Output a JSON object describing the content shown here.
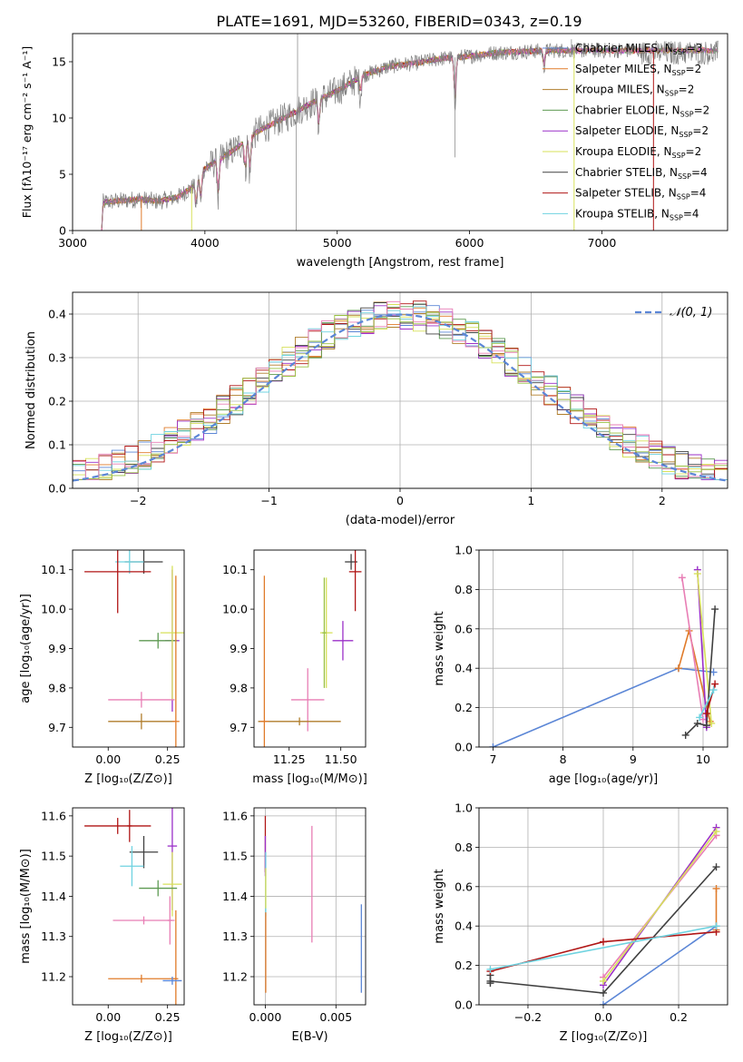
{
  "figure_title": "PLATE=1691, MJD=53260, FIBERID=0343, z=0.19",
  "colors": {
    "blue": "#5b86d6",
    "orange": "#e07b2a",
    "brown": "#b07d2b",
    "green": "#5e9a52",
    "purple": "#9b30c8",
    "yellow": "#d7e15a",
    "dark": "#404040",
    "red": "#b01515",
    "cyan": "#6fd3e0",
    "pink": "#e87eb5",
    "lime": "#98c040",
    "grey": "#808080"
  },
  "chart_data": [
    {
      "id": "spectrum",
      "type": "line",
      "title": "PLATE=1691, MJD=53260, FIBERID=0343, z=0.19",
      "xlabel": "wavelength [Angstrom, rest frame]",
      "ylabel": "Flux [fλ10⁻¹⁷ erg cm⁻² s⁻¹ A⁻¹]",
      "xlim": [
        3000,
        7950
      ],
      "ylim": [
        0,
        17.5
      ],
      "xticks": [
        "3000",
        "4000",
        "5000",
        "6000",
        "7000"
      ],
      "yticks": [
        "0",
        "5",
        "10",
        "15"
      ],
      "grid": false,
      "legend_position": "right",
      "legend": [
        {
          "label": "Chabrier MILES, N",
          "sub": "SSP",
          "suffix": "=3",
          "color": "#5b86d6"
        },
        {
          "label": "Salpeter MILES, N",
          "sub": "SSP",
          "suffix": "=2",
          "color": "#e07b2a"
        },
        {
          "label": "Kroupa MILES, N",
          "sub": "SSP",
          "suffix": "=2",
          "color": "#b07d2b"
        },
        {
          "label": "Chabrier ELODIE, N",
          "sub": "SSP",
          "suffix": "=2",
          "color": "#5e9a52"
        },
        {
          "label": "Salpeter ELODIE, N",
          "sub": "SSP",
          "suffix": "=2",
          "color": "#9b30c8"
        },
        {
          "label": "Kroupa ELODIE, N",
          "sub": "SSP",
          "suffix": "=2",
          "color": "#d7e15a"
        },
        {
          "label": "Chabrier STELIB, N",
          "sub": "SSP",
          "suffix": "=4",
          "color": "#404040"
        },
        {
          "label": "Salpeter STELIB, N",
          "sub": "SSP",
          "suffix": "=4",
          "color": "#b01515"
        },
        {
          "label": "Kroupa STELIB, N",
          "sub": "SSP",
          "suffix": "=4",
          "color": "#6fd3e0"
        }
      ],
      "continuum": [
        [
          3220,
          0
        ],
        [
          3230,
          2.5
        ],
        [
          3500,
          2.8
        ],
        [
          3650,
          2.6
        ],
        [
          3800,
          3.0
        ],
        [
          3900,
          3.8
        ],
        [
          4000,
          5.5
        ],
        [
          4200,
          7.0
        ],
        [
          4400,
          8.8
        ],
        [
          4600,
          10.0
        ],
        [
          4800,
          11.3
        ],
        [
          5000,
          12.4
        ],
        [
          5200,
          13.8
        ],
        [
          5400,
          14.6
        ],
        [
          5600,
          14.9
        ],
        [
          5800,
          15.3
        ],
        [
          6000,
          15.5
        ],
        [
          6200,
          15.8
        ],
        [
          6400,
          15.9
        ],
        [
          6600,
          16.0
        ],
        [
          6800,
          16.0
        ]
      ],
      "absorption_lines": [
        [
          3934,
          2.5
        ],
        [
          3969,
          2.5
        ],
        [
          4101,
          3.5
        ],
        [
          4305,
          3.0
        ],
        [
          4340,
          3.5
        ],
        [
          4861,
          2.5
        ],
        [
          5175,
          1.5
        ],
        [
          5890,
          4.5
        ],
        [
          6563,
          1.5
        ]
      ]
    },
    {
      "id": "residuals",
      "type": "line",
      "xlabel": "(data-model)/error",
      "ylabel": "Normed distribution",
      "xlim": [
        -2.5,
        2.5
      ],
      "ylim": [
        0,
        0.45
      ],
      "xticks": [
        "−2",
        "−1",
        "0",
        "1",
        "2"
      ],
      "yticks": [
        "0.0",
        "0.1",
        "0.2",
        "0.3",
        "0.4"
      ],
      "grid": true,
      "legend_position": "top-right",
      "legend_label": "𝒩(0, 1)",
      "gaussian": {
        "mean": 0,
        "sigma": 1
      },
      "bin_width": 0.1
    },
    {
      "id": "age_vs_Z",
      "type": "scatter",
      "xlabel": "Z [log₁₀(Z/Z⊙)]",
      "ylabel": "age  [log₁₀(age/yr)]",
      "xlim": [
        -0.15,
        0.32
      ],
      "ylim": [
        9.65,
        10.15
      ],
      "xticks": [
        "0.00",
        "0.25"
      ],
      "yticks": [
        "9.7",
        "9.8",
        "9.9",
        "10.0",
        "10.1"
      ],
      "points": [
        {
          "x": 0.15,
          "y": 10.12,
          "xerr": 0.08,
          "yerr": 0.03,
          "color": "#404040"
        },
        {
          "x": 0.09,
          "y": 10.12,
          "xerr": 0.06,
          "yerr": 0.03,
          "color": "#6fd3e0"
        },
        {
          "x": 0.04,
          "y": 10.095,
          "xerr": 0.14,
          "yerr": 0.105,
          "color": "#b01515"
        },
        {
          "x": 0.27,
          "y": 9.92,
          "xerr": 0.03,
          "yerr": 0.18,
          "color": "#9b30c8"
        },
        {
          "x": 0.21,
          "y": 9.92,
          "xerr": 0.08,
          "yerr": 0.02,
          "color": "#5e9a52"
        },
        {
          "x": 0.27,
          "y": 9.94,
          "xerr": 0.05,
          "yerr": 0.17,
          "color": "#d7e15a"
        },
        {
          "x": 0.14,
          "y": 9.77,
          "xerr": 0.14,
          "yerr": 0.02,
          "color": "#e87eb5"
        },
        {
          "x": 0.14,
          "y": 9.715,
          "xerr": 0.14,
          "yerr": 0.02,
          "color": "#b07d2b"
        },
        {
          "x": 0.285,
          "y": 9.715,
          "xerr": 0.015,
          "yerr": 0.37,
          "color": "#e07b2a"
        }
      ]
    },
    {
      "id": "age_vs_mass",
      "type": "scatter",
      "xlabel": "mass [log₁₀(M/M⊙)]",
      "ylabel": "",
      "xlim": [
        11.08,
        11.62
      ],
      "ylim": [
        9.65,
        10.15
      ],
      "xticks": [
        "11.25",
        "11.50"
      ],
      "yticks": [
        "9.7",
        "9.8",
        "9.9",
        "10.0",
        "10.1"
      ],
      "points": [
        {
          "x": 11.55,
          "y": 10.12,
          "xerr": 0.03,
          "yerr": 0.02,
          "color": "#404040"
        },
        {
          "x": 11.57,
          "y": 10.095,
          "xerr": 0.03,
          "yerr": 0.1,
          "color": "#b01515"
        },
        {
          "x": 11.51,
          "y": 9.92,
          "xerr": 0.05,
          "yerr": 0.05,
          "color": "#9b30c8"
        },
        {
          "x": 11.43,
          "y": 9.94,
          "xerr": 0.03,
          "yerr": 0.14,
          "color": "#d7e15a"
        },
        {
          "x": 11.42,
          "y": 9.94,
          "xerr": 0.01,
          "yerr": 0.14,
          "color": "#98c040"
        },
        {
          "x": 11.34,
          "y": 9.77,
          "xerr": 0.08,
          "yerr": 0.08,
          "color": "#e87eb5"
        },
        {
          "x": 11.3,
          "y": 9.715,
          "xerr": 0.2,
          "yerr": 0.01,
          "color": "#b07d2b"
        },
        {
          "x": 11.13,
          "y": 9.715,
          "xerr": 0.02,
          "yerr": 0.37,
          "color": "#e07b2a"
        }
      ]
    },
    {
      "id": "weight_vs_age",
      "type": "line",
      "xlabel": "age  [log₁₀(age/yr)]",
      "ylabel": "mass weight",
      "xlim": [
        6.8,
        10.35
      ],
      "ylim": [
        0,
        1
      ],
      "xticks": [
        "7",
        "8",
        "9",
        "10"
      ],
      "yticks": [
        "0.0",
        "0.2",
        "0.4",
        "0.6",
        "0.8",
        "1.0"
      ],
      "grid": true,
      "series": [
        {
          "color": "#5b86d6",
          "x": [
            7.0,
            9.65,
            10.15
          ],
          "y": [
            0.0,
            0.4,
            0.38
          ]
        },
        {
          "color": "#e07b2a",
          "x": [
            9.65,
            9.8,
            10.1
          ],
          "y": [
            0.4,
            0.59,
            0.13
          ]
        },
        {
          "color": "#e87eb5",
          "x": [
            9.7,
            10.0
          ],
          "y": [
            0.86,
            0.14
          ]
        },
        {
          "color": "#9b30c8",
          "x": [
            9.92,
            10.05
          ],
          "y": [
            0.9,
            0.1
          ]
        },
        {
          "color": "#d7e15a",
          "x": [
            9.92,
            10.12
          ],
          "y": [
            0.88,
            0.12
          ]
        },
        {
          "color": "#404040",
          "x": [
            9.75,
            9.92,
            10.05,
            10.17
          ],
          "y": [
            0.06,
            0.12,
            0.11,
            0.7
          ]
        },
        {
          "color": "#b01515",
          "x": [
            10.05,
            10.17
          ],
          "y": [
            0.17,
            0.32
          ]
        },
        {
          "color": "#6fd3e0",
          "x": [
            9.95,
            10.15
          ],
          "y": [
            0.15,
            0.29
          ]
        }
      ]
    },
    {
      "id": "mass_vs_Z",
      "type": "scatter",
      "xlabel": "Z [log₁₀(Z/Z⊙)]",
      "ylabel": "mass [log₁₀(M/M⊙)]",
      "xlim": [
        -0.15,
        0.32
      ],
      "ylim": [
        11.13,
        11.62
      ],
      "xticks": [
        "0.00",
        "0.25"
      ],
      "yticks": [
        "11.2",
        "11.3",
        "11.4",
        "11.5",
        "11.6"
      ],
      "points": [
        {
          "x": 0.04,
          "y": 11.575,
          "xerr": 0.14,
          "yerr": 0.02,
          "color": "#b01515"
        },
        {
          "x": 0.09,
          "y": 11.575,
          "xerr": 0.01,
          "yerr": 0.04,
          "color": "#b01515"
        },
        {
          "x": 0.15,
          "y": 11.51,
          "xerr": 0.06,
          "yerr": 0.04,
          "color": "#404040"
        },
        {
          "x": 0.27,
          "y": 11.525,
          "xerr": 0.02,
          "yerr": 0.16,
          "color": "#9b30c8"
        },
        {
          "x": 0.1,
          "y": 11.475,
          "xerr": 0.05,
          "yerr": 0.05,
          "color": "#6fd3e0"
        },
        {
          "x": 0.27,
          "y": 11.43,
          "xerr": 0.04,
          "yerr": 0.08,
          "color": "#d7e15a"
        },
        {
          "x": 0.21,
          "y": 11.42,
          "xerr": 0.08,
          "yerr": 0.02,
          "color": "#5e9a52"
        },
        {
          "x": 0.15,
          "y": 11.34,
          "xerr": 0.13,
          "yerr": 0.01,
          "color": "#e87eb5"
        },
        {
          "x": 0.26,
          "y": 11.34,
          "xerr": 0.01,
          "yerr": 0.06,
          "color": "#e87eb5"
        },
        {
          "x": 0.14,
          "y": 11.195,
          "xerr": 0.14,
          "yerr": 0.01,
          "color": "#e07b2a"
        },
        {
          "x": 0.285,
          "y": 11.195,
          "xerr": 0.01,
          "yerr": 0.17,
          "color": "#e07b2a"
        },
        {
          "x": 0.27,
          "y": 11.19,
          "xerr": 0.04,
          "yerr": 0.01,
          "color": "#5b86d6"
        }
      ]
    },
    {
      "id": "mass_vs_ebv",
      "type": "scatter",
      "xlabel": "E(B-V)",
      "ylabel": "",
      "xlim": [
        -0.0008,
        0.0071
      ],
      "ylim": [
        11.13,
        11.62
      ],
      "xticks": [
        "0.000",
        "0.005"
      ],
      "yticks": [
        "11.2",
        "11.3",
        "11.4",
        "11.5",
        "11.6"
      ],
      "grid": true,
      "points": [
        {
          "x": 0.0,
          "y": 11.53,
          "xerr": 0,
          "yerr": 0.07,
          "color": "#b01515"
        },
        {
          "x": 0.0,
          "y": 11.5,
          "xerr": 0,
          "yerr": 0.05,
          "color": "#9b30c8"
        },
        {
          "x": 3e-05,
          "y": 11.43,
          "xerr": 0,
          "yerr": 0.08,
          "color": "#6fd3e0"
        },
        {
          "x": 3e-05,
          "y": 11.42,
          "xerr": 0,
          "yerr": 0.05,
          "color": "#d7e15a"
        },
        {
          "x": 3e-05,
          "y": 11.26,
          "xerr": 0,
          "yerr": 0.1,
          "color": "#e07b2a"
        },
        {
          "x": 0.0033,
          "y": 11.43,
          "xerr": 0,
          "yerr": 0.145,
          "color": "#e87eb5"
        },
        {
          "x": 0.0068,
          "y": 11.27,
          "xerr": 0,
          "yerr": 0.11,
          "color": "#5b86d6"
        }
      ]
    },
    {
      "id": "weight_vs_Z",
      "type": "line",
      "xlabel": "Z [log₁₀(Z/Z⊙)]",
      "ylabel": "mass weight",
      "xlim": [
        -0.33,
        0.33
      ],
      "ylim": [
        0,
        1
      ],
      "xticks": [
        "−0.2",
        "0.0",
        "0.2"
      ],
      "yticks": [
        "0.0",
        "0.2",
        "0.4",
        "0.6",
        "0.8",
        "1.0"
      ],
      "grid": true,
      "series": [
        {
          "color": "#5b86d6",
          "x": [
            0.0,
            0.3
          ],
          "y": [
            0.0,
            0.4
          ]
        },
        {
          "color": "#e07b2a",
          "x": [
            0.3,
            0.3
          ],
          "y": [
            0.38,
            0.59
          ]
        },
        {
          "color": "#e87eb5",
          "x": [
            0.0,
            0.3
          ],
          "y": [
            0.14,
            0.86
          ]
        },
        {
          "color": "#9b30c8",
          "x": [
            0.0,
            0.3
          ],
          "y": [
            0.1,
            0.9
          ]
        },
        {
          "color": "#d7e15a",
          "x": [
            0.0,
            0.3
          ],
          "y": [
            0.12,
            0.88
          ]
        },
        {
          "color": "#404040",
          "x": [
            -0.3,
            0.0,
            0.3
          ],
          "y": [
            0.12,
            0.06,
            0.7
          ]
        },
        {
          "color": "#404040",
          "x": [
            -0.3,
            -0.3
          ],
          "y": [
            0.11,
            0.15
          ]
        },
        {
          "color": "#b01515",
          "x": [
            -0.3,
            0.0,
            0.3
          ],
          "y": [
            0.17,
            0.32,
            0.37
          ]
        },
        {
          "color": "#6fd3e0",
          "x": [
            -0.3,
            0.3
          ],
          "y": [
            0.18,
            0.4
          ]
        }
      ]
    }
  ]
}
